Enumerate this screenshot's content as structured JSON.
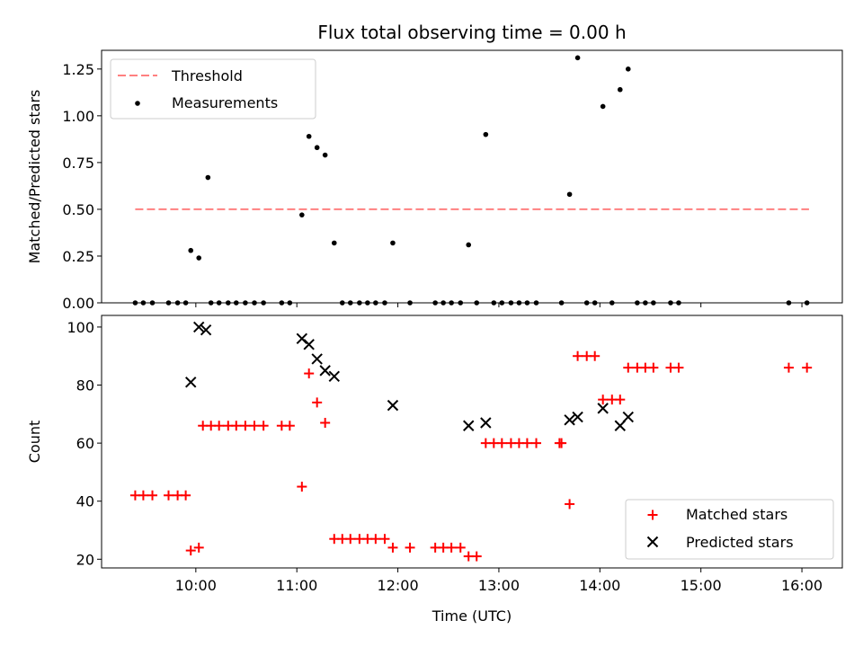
{
  "chart_data": [
    {
      "type": "scatter",
      "title": "Flux total observing time = 0.00 h",
      "xlabel": "",
      "ylabel": "Matched/Predicted stars",
      "xlim": [
        9.067,
        16.4
      ],
      "ylim": [
        0,
        1.35
      ],
      "grid": false,
      "legend_position": "upper-left",
      "x_is_time_hours_utc": true,
      "yticks": [
        0,
        0.25,
        0.5,
        0.75,
        1.0,
        1.25
      ],
      "ytick_labels": [
        "0.00",
        "0.25",
        "0.50",
        "0.75",
        "1.00",
        "1.25"
      ],
      "threshold": {
        "name": "Threshold",
        "value": 0.5,
        "x_range": [
          9.4,
          16.07
        ],
        "color": "#ff8080",
        "style": "dashed"
      },
      "series": [
        {
          "name": "Measurements",
          "color": "#000000",
          "marker": "dot",
          "x": [
            9.4,
            9.48,
            9.57,
            9.73,
            9.82,
            9.9,
            9.95,
            10.03,
            10.12,
            10.15,
            10.23,
            10.32,
            10.4,
            10.49,
            10.58,
            10.67,
            10.85,
            10.93,
            11.05,
            11.12,
            11.2,
            11.28,
            11.37,
            11.45,
            11.53,
            11.62,
            11.7,
            11.78,
            11.87,
            11.95,
            12.12,
            12.37,
            12.45,
            12.53,
            12.62,
            12.7,
            12.78,
            12.87,
            12.95,
            13.03,
            13.12,
            13.2,
            13.28,
            13.37,
            13.62,
            13.7,
            13.78,
            13.87,
            13.95,
            14.03,
            14.12,
            14.2,
            14.28,
            14.37,
            14.45,
            14.53,
            14.7,
            14.78,
            15.87,
            16.05
          ],
          "y": [
            0,
            0,
            0,
            0,
            0,
            0,
            0.28,
            0.24,
            0.67,
            0,
            0,
            0,
            0,
            0,
            0,
            0,
            0,
            0,
            0.47,
            0.89,
            0.83,
            0.79,
            0.32,
            0,
            0,
            0,
            0,
            0,
            0,
            0.32,
            0,
            0,
            0,
            0,
            0,
            0.31,
            0,
            0.9,
            0,
            0,
            0,
            0,
            0,
            0,
            0,
            0.58,
            1.31,
            0,
            0,
            1.05,
            0,
            1.14,
            1.25,
            0,
            0,
            0,
            0,
            0,
            0,
            0
          ]
        }
      ],
      "legend": [
        "Threshold",
        "Measurements"
      ]
    },
    {
      "type": "scatter",
      "title": "",
      "xlabel": "Time (UTC)",
      "ylabel": "Count",
      "xlim": [
        9.067,
        16.4
      ],
      "ylim": [
        17,
        104
      ],
      "grid": false,
      "legend_position": "lower-right",
      "x_is_time_hours_utc": true,
      "xticks": [
        10,
        11,
        12,
        13,
        14,
        15,
        16
      ],
      "xtick_labels": [
        "10:00",
        "11:00",
        "12:00",
        "13:00",
        "14:00",
        "15:00",
        "16:00"
      ],
      "yticks": [
        20,
        40,
        60,
        80,
        100
      ],
      "ytick_labels": [
        "20",
        "40",
        "60",
        "80",
        "100"
      ],
      "series": [
        {
          "name": "Matched stars",
          "color": "#ff0000",
          "marker": "plus",
          "x": [
            9.4,
            9.48,
            9.57,
            9.73,
            9.82,
            9.9,
            9.95,
            10.03,
            10.07,
            10.15,
            10.23,
            10.32,
            10.4,
            10.49,
            10.58,
            10.67,
            10.85,
            10.93,
            11.05,
            11.12,
            11.2,
            11.28,
            11.37,
            11.45,
            11.53,
            11.62,
            11.7,
            11.78,
            11.87,
            11.95,
            12.12,
            12.37,
            12.45,
            12.53,
            12.62,
            12.7,
            12.78,
            12.87,
            12.95,
            13.03,
            13.12,
            13.2,
            13.28,
            13.37,
            13.6,
            13.62,
            13.7,
            13.78,
            13.87,
            13.95,
            14.03,
            14.12,
            14.2,
            14.28,
            14.37,
            14.45,
            14.53,
            14.7,
            14.78,
            15.87,
            16.05
          ],
          "y": [
            42,
            42,
            42,
            42,
            42,
            42,
            23,
            24,
            66,
            66,
            66,
            66,
            66,
            66,
            66,
            66,
            66,
            66,
            45,
            84,
            74,
            67,
            27,
            27,
            27,
            27,
            27,
            27,
            27,
            24,
            24,
            24,
            24,
            24,
            24,
            21,
            21,
            60,
            60,
            60,
            60,
            60,
            60,
            60,
            60,
            60,
            39,
            90,
            90,
            90,
            75,
            75,
            75,
            86,
            86,
            86,
            86,
            86,
            86,
            86,
            86
          ]
        },
        {
          "name": "Predicted stars",
          "color": "#000000",
          "marker": "x",
          "x": [
            9.95,
            10.03,
            10.1,
            11.05,
            11.12,
            11.2,
            11.28,
            11.37,
            11.95,
            12.7,
            12.87,
            13.7,
            13.78,
            14.03,
            14.2,
            14.28
          ],
          "y": [
            81,
            100,
            99,
            96,
            94,
            89,
            85,
            83,
            73,
            66,
            67,
            68,
            69,
            72,
            66,
            69
          ]
        }
      ],
      "legend": [
        "Matched stars",
        "Predicted stars"
      ]
    }
  ]
}
